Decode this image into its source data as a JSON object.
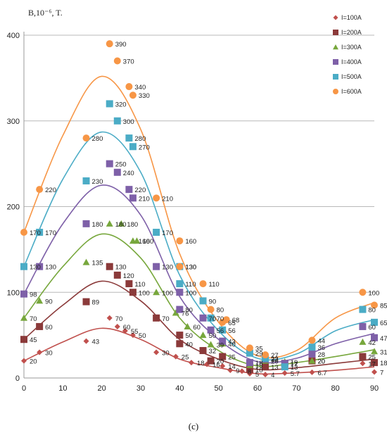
{
  "chart_data": {
    "type": "scatter",
    "ylabel": "B,10⁻⁶, T.",
    "xlim": [
      0,
      90
    ],
    "ylim": [
      0,
      400
    ],
    "x_ticks": [
      0,
      10,
      20,
      30,
      40,
      50,
      60,
      70,
      80,
      90
    ],
    "y_ticks": [
      0,
      100,
      200,
      300,
      400
    ],
    "grid": "horizontal",
    "legend": "top-right",
    "caption": "(c)",
    "series": [
      {
        "name": "I=100A",
        "marker": "diamond",
        "color": "#c0504d",
        "points": [
          [
            0,
            20,
            "20"
          ],
          [
            4,
            30,
            "30"
          ],
          [
            16,
            43,
            "43"
          ],
          [
            22,
            70,
            "70"
          ],
          [
            24,
            60,
            "60"
          ],
          [
            26,
            55,
            "55"
          ],
          [
            28,
            50,
            "50"
          ],
          [
            34,
            30,
            "30"
          ],
          [
            39,
            25,
            "25"
          ],
          [
            43,
            18,
            "18"
          ],
          [
            47,
            16,
            "16"
          ],
          [
            51,
            14,
            "14"
          ],
          [
            53,
            9,
            "9"
          ],
          [
            56,
            8,
            "8"
          ],
          [
            58,
            5,
            "5"
          ],
          [
            62,
            4,
            "4"
          ],
          [
            67,
            5.7,
            "5.7"
          ],
          [
            74,
            6.7,
            "6.7"
          ],
          [
            87,
            17,
            "17"
          ],
          [
            90,
            7,
            "7"
          ]
        ],
        "curve": [
          [
            0,
            20
          ],
          [
            10,
            42
          ],
          [
            20,
            58
          ],
          [
            30,
            45
          ],
          [
            40,
            22
          ],
          [
            50,
            12
          ],
          [
            60,
            5
          ],
          [
            70,
            6
          ],
          [
            80,
            9
          ],
          [
            90,
            13
          ]
        ]
      },
      {
        "name": "I=200A",
        "marker": "square",
        "color": "#8b3a3a",
        "points": [
          [
            0,
            45,
            "45"
          ],
          [
            4,
            60,
            "60"
          ],
          [
            16,
            89,
            "89"
          ],
          [
            22,
            130,
            "130"
          ],
          [
            24,
            120,
            "120"
          ],
          [
            27,
            110,
            "110"
          ],
          [
            28,
            100,
            "100"
          ],
          [
            34,
            70,
            "70"
          ],
          [
            40,
            40,
            "40"
          ],
          [
            40,
            50,
            "50"
          ],
          [
            46,
            32,
            "32"
          ],
          [
            48,
            20,
            "20"
          ],
          [
            51,
            25,
            "25"
          ],
          [
            58,
            10,
            "10"
          ],
          [
            62,
            13,
            "13"
          ],
          [
            67,
            17,
            "17"
          ],
          [
            74,
            20,
            "20"
          ],
          [
            87,
            25,
            "25"
          ],
          [
            90,
            18,
            "18"
          ]
        ],
        "curve": [
          [
            0,
            45
          ],
          [
            10,
            85
          ],
          [
            20,
            113
          ],
          [
            30,
            90
          ],
          [
            40,
            45
          ],
          [
            50,
            22
          ],
          [
            60,
            10
          ],
          [
            70,
            12
          ],
          [
            80,
            17
          ],
          [
            90,
            22
          ]
        ]
      },
      {
        "name": "I=300A",
        "marker": "triangle",
        "color": "#77a73c",
        "points": [
          [
            0,
            70,
            "70"
          ],
          [
            4,
            90,
            "90"
          ],
          [
            16,
            135,
            "135"
          ],
          [
            22,
            180,
            "180"
          ],
          [
            25,
            180,
            "180"
          ],
          [
            28,
            160,
            "160"
          ],
          [
            29,
            160,
            "160"
          ],
          [
            34,
            100,
            "100"
          ],
          [
            39,
            76,
            "76"
          ],
          [
            42,
            60,
            "60"
          ],
          [
            46,
            50,
            "50"
          ],
          [
            48,
            39,
            "39"
          ],
          [
            51,
            40,
            "40"
          ],
          [
            58,
            15,
            "15"
          ],
          [
            62,
            20,
            "20"
          ],
          [
            67,
            19,
            "19"
          ],
          [
            74,
            20,
            "20"
          ],
          [
            87,
            42,
            "42"
          ],
          [
            90,
            31,
            "31"
          ]
        ],
        "curve": [
          [
            0,
            70
          ],
          [
            10,
            130
          ],
          [
            20,
            168
          ],
          [
            30,
            140
          ],
          [
            40,
            70
          ],
          [
            50,
            32
          ],
          [
            60,
            14
          ],
          [
            70,
            18
          ],
          [
            80,
            25
          ],
          [
            90,
            33
          ]
        ]
      },
      {
        "name": "I=400A",
        "marker": "square",
        "color": "#7e60a8",
        "points": [
          [
            0,
            98,
            "98"
          ],
          [
            4,
            130,
            "130"
          ],
          [
            16,
            180,
            "180"
          ],
          [
            22,
            250,
            "250"
          ],
          [
            24,
            240,
            "240"
          ],
          [
            27,
            220,
            "220"
          ],
          [
            28,
            210,
            "210"
          ],
          [
            34,
            130,
            "130"
          ],
          [
            40,
            100,
            "100"
          ],
          [
            40,
            80,
            "80"
          ],
          [
            46,
            70,
            "70"
          ],
          [
            48,
            56,
            "56"
          ],
          [
            51,
            43,
            "43"
          ],
          [
            58,
            18,
            "18"
          ],
          [
            62,
            22,
            "22"
          ],
          [
            67,
            17,
            "17"
          ],
          [
            74,
            28,
            "28"
          ],
          [
            87,
            60,
            "60"
          ],
          [
            90,
            47,
            "47"
          ]
        ],
        "curve": [
          [
            0,
            98
          ],
          [
            10,
            180
          ],
          [
            20,
            225
          ],
          [
            30,
            190
          ],
          [
            40,
            95
          ],
          [
            50,
            45
          ],
          [
            60,
            19
          ],
          [
            70,
            23
          ],
          [
            80,
            40
          ],
          [
            90,
            52
          ]
        ]
      },
      {
        "name": "I=500A",
        "marker": "square",
        "color": "#4bacc6",
        "points": [
          [
            0,
            130,
            "130"
          ],
          [
            4,
            170,
            "170"
          ],
          [
            16,
            230,
            "230"
          ],
          [
            22,
            320,
            "320"
          ],
          [
            24,
            300,
            "300"
          ],
          [
            27,
            280,
            "280"
          ],
          [
            28,
            270,
            "270"
          ],
          [
            34,
            170,
            "170"
          ],
          [
            40,
            130,
            "130"
          ],
          [
            40,
            110,
            "110"
          ],
          [
            46,
            90,
            "90"
          ],
          [
            48,
            70,
            "70"
          ],
          [
            51,
            56,
            "56"
          ],
          [
            58,
            29,
            "29"
          ],
          [
            62,
            23,
            "23"
          ],
          [
            67,
            13,
            "13"
          ],
          [
            74,
            36,
            "36"
          ],
          [
            87,
            80,
            "80"
          ],
          [
            90,
            65,
            "65"
          ]
        ],
        "curve": [
          [
            0,
            130
          ],
          [
            10,
            232
          ],
          [
            20,
            287
          ],
          [
            30,
            240
          ],
          [
            40,
            120
          ],
          [
            50,
            55
          ],
          [
            60,
            23
          ],
          [
            70,
            28
          ],
          [
            80,
            55
          ],
          [
            90,
            68
          ]
        ]
      },
      {
        "name": "I=600A",
        "marker": "circle",
        "color": "#f79646",
        "points": [
          [
            0,
            170,
            "170"
          ],
          [
            4,
            220,
            "220"
          ],
          [
            16,
            280,
            "280"
          ],
          [
            22,
            390,
            "390"
          ],
          [
            24,
            370,
            "370"
          ],
          [
            27,
            340,
            "340"
          ],
          [
            28,
            330,
            "330"
          ],
          [
            34,
            210,
            "210"
          ],
          [
            40,
            160,
            "160"
          ],
          [
            40,
            130,
            "130"
          ],
          [
            46,
            110,
            "110"
          ],
          [
            48,
            80,
            "80"
          ],
          [
            51,
            65,
            "65"
          ],
          [
            52,
            68,
            "68"
          ],
          [
            58,
            35,
            "35"
          ],
          [
            62,
            27,
            "27"
          ],
          [
            74,
            44,
            "44"
          ],
          [
            87,
            100,
            "100"
          ],
          [
            90,
            85,
            "85"
          ]
        ],
        "curve": [
          [
            0,
            170
          ],
          [
            10,
            283
          ],
          [
            20,
            352
          ],
          [
            30,
            290
          ],
          [
            40,
            145
          ],
          [
            50,
            65
          ],
          [
            60,
            26
          ],
          [
            70,
            32
          ],
          [
            80,
            70
          ],
          [
            90,
            88
          ]
        ]
      }
    ]
  }
}
